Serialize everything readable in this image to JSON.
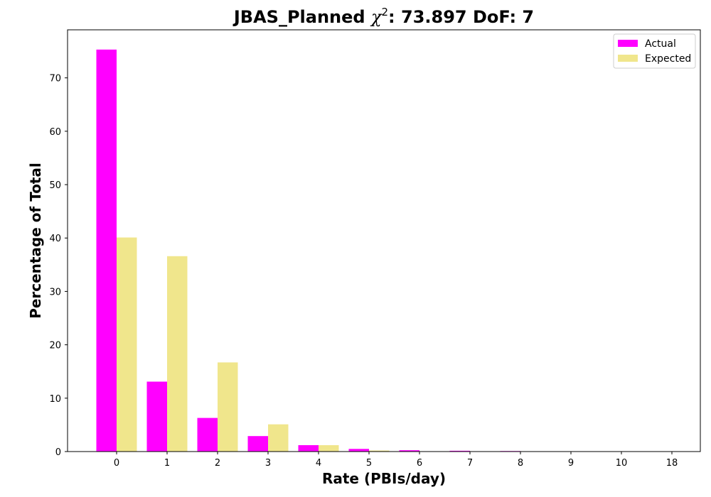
{
  "chart_data": {
    "type": "bar",
    "title_main": "JBAS_Planned ",
    "title_chi": "χ",
    "title_sup": "2",
    "title_rest": ": 73.897 DoF: 7",
    "xlabel": "Rate (PBIs/day)",
    "ylabel": "Percentage of Total",
    "categories": [
      "0",
      "1",
      "2",
      "3",
      "4",
      "5",
      "6",
      "7",
      "8",
      "9",
      "10",
      "18"
    ],
    "series": [
      {
        "name": "Actual",
        "color": "#ff00ff",
        "values": [
          75.3,
          13.1,
          6.3,
          2.9,
          1.2,
          0.5,
          0.25,
          0.15,
          0.1,
          0,
          0,
          0
        ]
      },
      {
        "name": "Expected",
        "color": "#f0e68c",
        "values": [
          40.1,
          36.6,
          16.7,
          5.1,
          1.2,
          0.2,
          0.05,
          0,
          0,
          0,
          0,
          0
        ]
      }
    ],
    "yticks": [
      "0",
      "10",
      "20",
      "30",
      "40",
      "50",
      "60",
      "70"
    ],
    "ylim": [
      0,
      79
    ],
    "legend_position": "top-right",
    "grid": false
  }
}
